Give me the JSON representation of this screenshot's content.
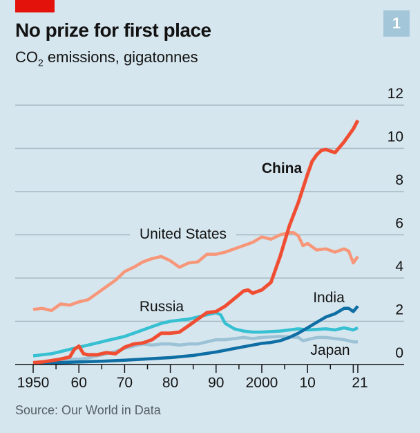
{
  "header": {
    "title": "No prize for first place",
    "subtitle_prefix": "CO",
    "subtitle_sub": "2",
    "subtitle_rest": " emissions, gigatonnes",
    "badge": "1"
  },
  "footer": {
    "source": "Source: Our World in Data"
  },
  "colors": {
    "china": "#f04e33",
    "us": "#f7977a",
    "russia": "#36c0d2",
    "india": "#0f6ea4",
    "japan": "#9cc2d6",
    "grid": "#a6b8c2",
    "axis": "#121212"
  },
  "chart_data": {
    "type": "line",
    "title": "No prize for first place",
    "subtitle": "CO2 emissions, gigatonnes",
    "xlabel": "",
    "ylabel": "CO2 emissions, gigatonnes",
    "xlim": [
      1950,
      2021
    ],
    "ylim": [
      0,
      12
    ],
    "y_ticks": [
      0,
      2,
      4,
      6,
      8,
      10,
      12
    ],
    "x_ticks": [
      {
        "v": 1950,
        "l": "1950"
      },
      {
        "v": 1960,
        "l": "60"
      },
      {
        "v": 1970,
        "l": "70"
      },
      {
        "v": 1980,
        "l": "80"
      },
      {
        "v": 1990,
        "l": "90"
      },
      {
        "v": 2000,
        "l": "2000"
      },
      {
        "v": 2010,
        "l": "10"
      },
      {
        "v": 2021,
        "l": "21"
      }
    ],
    "grid": true,
    "series": [
      {
        "name": "United States",
        "key": "us",
        "label": "United States",
        "x": [
          1950,
          1952,
          1954,
          1956,
          1958,
          1960,
          1962,
          1964,
          1966,
          1968,
          1970,
          1972,
          1974,
          1976,
          1978,
          1980,
          1982,
          1984,
          1986,
          1988,
          1990,
          1992,
          1994,
          1996,
          1998,
          2000,
          2002,
          2004,
          2006,
          2007,
          2008,
          2009,
          2010,
          2012,
          2014,
          2016,
          2018,
          2019,
          2020,
          2021
        ],
        "y": [
          2.55,
          2.6,
          2.5,
          2.8,
          2.75,
          2.9,
          3.0,
          3.3,
          3.6,
          3.9,
          4.3,
          4.5,
          4.75,
          4.9,
          5.0,
          4.8,
          4.5,
          4.7,
          4.75,
          5.1,
          5.1,
          5.2,
          5.35,
          5.5,
          5.65,
          5.9,
          5.8,
          6.0,
          6.1,
          6.1,
          5.95,
          5.5,
          5.6,
          5.3,
          5.35,
          5.2,
          5.35,
          5.25,
          4.7,
          5.0
        ]
      },
      {
        "name": "China",
        "key": "china",
        "label": "China",
        "x": [
          1950,
          1952,
          1954,
          1956,
          1958,
          1959,
          1960,
          1961,
          1962,
          1964,
          1966,
          1968,
          1970,
          1972,
          1974,
          1976,
          1978,
          1980,
          1982,
          1984,
          1986,
          1988,
          1990,
          1992,
          1994,
          1996,
          1997,
          1998,
          2000,
          2002,
          2004,
          2006,
          2008,
          2010,
          2011,
          2012,
          2013,
          2014,
          2016,
          2018,
          2020,
          2021
        ],
        "y": [
          0.08,
          0.12,
          0.18,
          0.25,
          0.35,
          0.7,
          0.85,
          0.5,
          0.45,
          0.45,
          0.55,
          0.5,
          0.8,
          0.95,
          1.0,
          1.15,
          1.45,
          1.45,
          1.5,
          1.8,
          2.1,
          2.4,
          2.45,
          2.7,
          3.05,
          3.4,
          3.45,
          3.3,
          3.45,
          3.8,
          5.0,
          6.4,
          7.5,
          8.8,
          9.4,
          9.7,
          9.9,
          9.95,
          9.8,
          10.3,
          10.9,
          11.3
        ]
      },
      {
        "name": "Russia",
        "key": "russia",
        "label": "Russia",
        "x": [
          1950,
          1952,
          1954,
          1956,
          1958,
          1960,
          1962,
          1964,
          1966,
          1968,
          1970,
          1972,
          1974,
          1976,
          1978,
          1980,
          1982,
          1984,
          1986,
          1988,
          1990,
          1991,
          1992,
          1994,
          1996,
          1998,
          2000,
          2004,
          2008,
          2010,
          2014,
          2016,
          2018,
          2020,
          2021
        ],
        "y": [
          0.4,
          0.45,
          0.5,
          0.6,
          0.7,
          0.8,
          0.9,
          1.0,
          1.1,
          1.2,
          1.3,
          1.45,
          1.6,
          1.75,
          1.9,
          2.0,
          2.05,
          2.1,
          2.2,
          2.3,
          2.4,
          2.3,
          1.9,
          1.65,
          1.55,
          1.5,
          1.5,
          1.55,
          1.65,
          1.6,
          1.65,
          1.6,
          1.7,
          1.6,
          1.7
        ]
      },
      {
        "name": "India",
        "key": "india",
        "label": "India",
        "x": [
          1950,
          1955,
          1960,
          1965,
          1970,
          1975,
          1980,
          1985,
          1990,
          1995,
          2000,
          2002,
          2004,
          2006,
          2008,
          2010,
          2012,
          2014,
          2016,
          2018,
          2019,
          2020,
          2021
        ],
        "y": [
          0.06,
          0.08,
          0.12,
          0.15,
          0.2,
          0.26,
          0.32,
          0.42,
          0.58,
          0.78,
          0.98,
          1.02,
          1.1,
          1.25,
          1.45,
          1.7,
          1.95,
          2.2,
          2.35,
          2.6,
          2.6,
          2.45,
          2.7
        ]
      },
      {
        "name": "Japan",
        "key": "japan",
        "label": "Japan",
        "x": [
          1950,
          1955,
          1958,
          1960,
          1962,
          1964,
          1966,
          1968,
          1970,
          1972,
          1974,
          1976,
          1978,
          1980,
          1982,
          1984,
          1986,
          1988,
          1990,
          1992,
          1994,
          1996,
          1998,
          2000,
          2004,
          2008,
          2009,
          2012,
          2014,
          2016,
          2018,
          2020,
          2021
        ],
        "y": [
          0.1,
          0.15,
          0.25,
          0.25,
          0.3,
          0.4,
          0.5,
          0.6,
          0.75,
          0.85,
          0.95,
          0.9,
          0.95,
          0.95,
          0.9,
          0.95,
          0.95,
          1.05,
          1.15,
          1.15,
          1.2,
          1.25,
          1.2,
          1.25,
          1.3,
          1.25,
          1.1,
          1.25,
          1.25,
          1.2,
          1.15,
          1.05,
          1.05
        ]
      }
    ]
  }
}
